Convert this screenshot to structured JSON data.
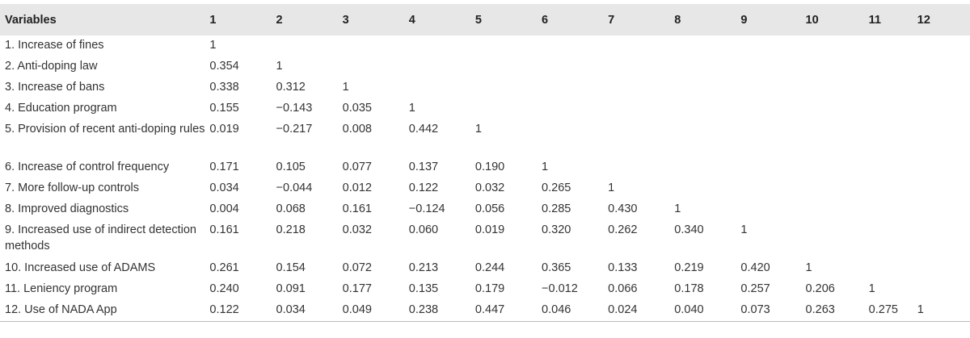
{
  "table": {
    "headers": [
      "Variables",
      "1",
      "2",
      "3",
      "4",
      "5",
      "6",
      "7",
      "8",
      "9",
      "10",
      "11",
      "12"
    ],
    "rows": [
      [
        "1. Increase of fines",
        "1",
        "",
        "",
        "",
        "",
        "",
        "",
        "",
        "",
        "",
        "",
        ""
      ],
      [
        "2. Anti-doping law",
        "0.354",
        "1",
        "",
        "",
        "",
        "",
        "",
        "",
        "",
        "",
        "",
        ""
      ],
      [
        "3. Increase of bans",
        "0.338",
        "0.312",
        "1",
        "",
        "",
        "",
        "",
        "",
        "",
        "",
        "",
        ""
      ],
      [
        "4. Education program",
        "0.155",
        "−0.143",
        "0.035",
        "1",
        "",
        "",
        "",
        "",
        "",
        "",
        "",
        ""
      ],
      [
        "5. Provision of recent anti-doping rules",
        "0.019",
        "−0.217",
        "0.008",
        "0.442",
        "1",
        "",
        "",
        "",
        "",
        "",
        "",
        ""
      ],
      [
        "6. Increase of control frequency",
        "0.171",
        "0.105",
        "0.077",
        "0.137",
        "0.190",
        "1",
        "",
        "",
        "",
        "",
        "",
        ""
      ],
      [
        "7. More follow-up controls",
        "0.034",
        "−0.044",
        "0.012",
        "0.122",
        "0.032",
        "0.265",
        "1",
        "",
        "",
        "",
        "",
        ""
      ],
      [
        "8. Improved diagnostics",
        "0.004",
        "0.068",
        "0.161",
        "−0.124",
        "0.056",
        "0.285",
        "0.430",
        "1",
        "",
        "",
        "",
        ""
      ],
      [
        "9. Increased use of indirect detection methods",
        "0.161",
        "0.218",
        "0.032",
        "0.060",
        "0.019",
        "0.320",
        "0.262",
        "0.340",
        "1",
        "",
        "",
        ""
      ],
      [
        "10. Increased use of ADAMS",
        "0.261",
        "0.154",
        "0.072",
        "0.213",
        "0.244",
        "0.365",
        "0.133",
        "0.219",
        "0.420",
        "1",
        "",
        ""
      ],
      [
        "11. Leniency program",
        "0.240",
        "0.091",
        "0.177",
        "0.135",
        "0.179",
        "−0.012",
        "0.066",
        "0.178",
        "0.257",
        "0.206",
        "1",
        ""
      ],
      [
        "12. Use of NADA App",
        "0.122",
        "0.034",
        "0.049",
        "0.238",
        "0.447",
        "0.046",
        "0.024",
        "0.040",
        "0.073",
        "0.263",
        "0.275",
        "1"
      ]
    ]
  }
}
